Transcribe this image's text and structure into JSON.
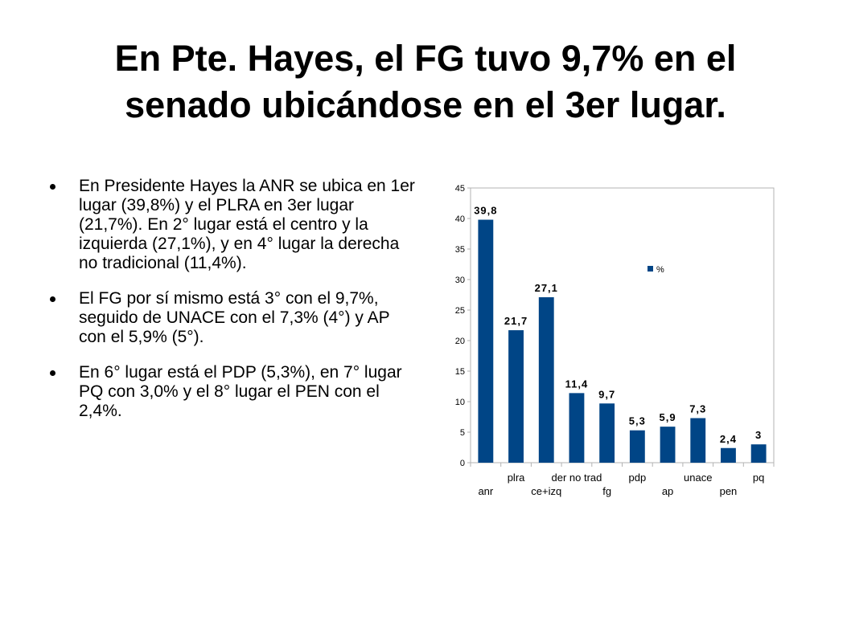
{
  "slide": {
    "title_line1": "En Pte. Hayes, el FG tuvo 9,7% en el",
    "title_line2": "senado ubicándose en el 3er lugar."
  },
  "bullets": [
    "En Presidente Hayes la ANR se ubica en 1er lugar (39,8%) y el PLRA en 3er lugar (21,7%). En 2° lugar está el centro y la izquierda (27,1%), y en 4° lugar la derecha no tradicional (11,4%).",
    "El FG por sí mismo está 3° con el 9,7%, seguido de UNACE con el 7,3% (4°) y AP con el 5,9% (5°).",
    "En 6° lugar está el PDP (5,3%), en 7° lugar PQ con 3,0% y el 8° lugar el PEN con el 2,4%."
  ],
  "chart_data": {
    "type": "bar",
    "title": "",
    "xlabel": "",
    "ylabel": "",
    "categories": [
      "anr",
      "plra",
      "ce+izq",
      "der no trad",
      "fg",
      "pdp",
      "ap",
      "unace",
      "pen",
      "pq"
    ],
    "series": [
      {
        "name": "%",
        "values": [
          39.8,
          21.7,
          27.1,
          11.4,
          9.7,
          5.3,
          5.9,
          7.3,
          2.4,
          3
        ],
        "labels": [
          "39,8",
          "21,7",
          "27,1",
          "11,4",
          "9,7",
          "5,3",
          "5,9",
          "7,3",
          "2,4",
          "3"
        ],
        "color": "#004586"
      }
    ],
    "ylim": [
      0,
      45
    ],
    "yticks": [
      0,
      5,
      10,
      15,
      20,
      25,
      30,
      35,
      40,
      45
    ],
    "grid": false,
    "legend": "top-right",
    "label_rows": "alternating"
  }
}
